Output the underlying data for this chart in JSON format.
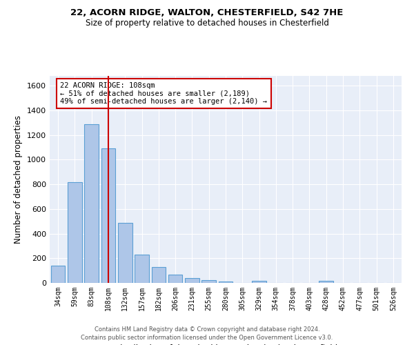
{
  "title1": "22, ACORN RIDGE, WALTON, CHESTERFIELD, S42 7HE",
  "title2": "Size of property relative to detached houses in Chesterfield",
  "xlabel": "Distribution of detached houses by size in Chesterfield",
  "ylabel": "Number of detached properties",
  "categories": [
    "34sqm",
    "59sqm",
    "83sqm",
    "108sqm",
    "132sqm",
    "157sqm",
    "182sqm",
    "206sqm",
    "231sqm",
    "255sqm",
    "280sqm",
    "305sqm",
    "329sqm",
    "354sqm",
    "378sqm",
    "403sqm",
    "428sqm",
    "452sqm",
    "477sqm",
    "501sqm",
    "526sqm"
  ],
  "values": [
    140,
    815,
    1290,
    1090,
    490,
    230,
    130,
    65,
    37,
    25,
    14,
    0,
    15,
    0,
    0,
    0,
    15,
    0,
    0,
    0,
    0
  ],
  "bar_color": "#aec6e8",
  "bar_edge_color": "#5a9fd4",
  "vline_x_index": 3,
  "vline_color": "#cc0000",
  "annotation_line1": "22 ACORN RIDGE: 108sqm",
  "annotation_line2": "← 51% of detached houses are smaller (2,189)",
  "annotation_line3": "49% of semi-detached houses are larger (2,140) →",
  "annotation_box_color": "#ffffff",
  "annotation_box_edge": "#cc0000",
  "ylim": [
    0,
    1680
  ],
  "yticks": [
    0,
    200,
    400,
    600,
    800,
    1000,
    1200,
    1400,
    1600
  ],
  "background_color": "#e8eef8",
  "grid_color": "#ffffff",
  "footer1": "Contains HM Land Registry data © Crown copyright and database right 2024.",
  "footer2": "Contains public sector information licensed under the Open Government Licence v3.0."
}
